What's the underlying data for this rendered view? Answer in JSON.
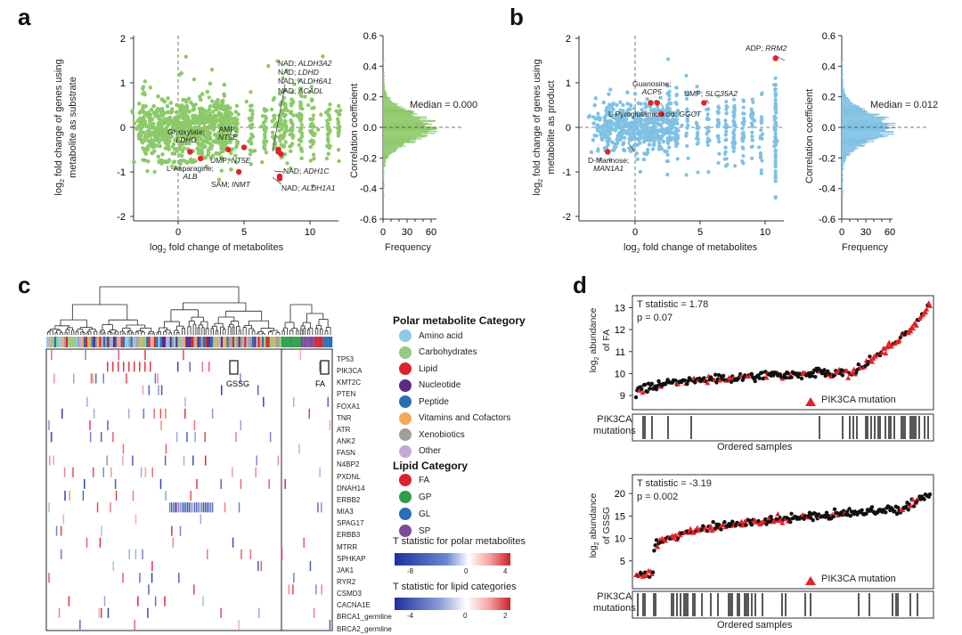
{
  "panels": {
    "a": "a",
    "b": "b",
    "c": "c",
    "d": "d"
  },
  "panel_a": {
    "ylabel_line1": "log",
    "ylabel_line1_sub": "2",
    "ylabel_rest": " fold change of genes using",
    "ylabel_line2": "metabolite as substrate",
    "xlabel_pre": "log",
    "xlabel_sub": "2",
    "xlabel_post": " fold change of metabolites",
    "yticks": [
      "2",
      "1",
      "0",
      "-1",
      "-2"
    ],
    "xticks": [
      "0",
      "5",
      "10"
    ],
    "annotations": [
      {
        "pre": "Glyoxylate;",
        "gene": "LDHD"
      },
      {
        "pre": "L-Asparagine;",
        "gene": "ALB"
      },
      {
        "pre": "AMP;",
        "gene": "NT5E"
      },
      {
        "pre": "UMP;",
        "gene": "NT5E"
      },
      {
        "pre": "SAM;",
        "gene": "INMT"
      },
      {
        "pre": "NAD;",
        "gene": "ALDH3A2"
      },
      {
        "pre": "NAD;",
        "gene": "LDHD"
      },
      {
        "pre": "NAD;",
        "gene": "ALDH6A1"
      },
      {
        "pre": "NAD;",
        "gene": "ACADL"
      },
      {
        "pre": "NAD;",
        "gene": "ADH1C"
      },
      {
        "pre": "NAD;",
        "gene": "ALDH1A1"
      }
    ],
    "hist": {
      "ylabel": "Correlation coefficient",
      "xlabel": "Frequency",
      "yticks": [
        "0.6",
        "0.4",
        "0.2",
        "0.0",
        "-0.2",
        "-0.4",
        "-0.6"
      ],
      "xticks": [
        "0",
        "30",
        "60"
      ],
      "median_label": "Median = 0.000"
    }
  },
  "panel_b": {
    "ylabel_line1": "log",
    "ylabel_line1_sub": "2",
    "ylabel_rest": " fold change of genes using",
    "ylabel_line2": "metabolite as product",
    "xlabel_pre": "log",
    "xlabel_sub": "2",
    "xlabel_post": " fold change of metabolites",
    "yticks": [
      "2",
      "1",
      "0",
      "-1",
      "-2"
    ],
    "xticks": [
      "0",
      "5",
      "10"
    ],
    "annotations": [
      {
        "pre": "ADP;",
        "gene": "RRM2"
      },
      {
        "pre": "Guanosine;",
        "gene": "ACP5"
      },
      {
        "pre": "UMP;",
        "gene": "SLC35A2"
      },
      {
        "pre": "L-Pyroglutamic acid;",
        "gene": "GGCT"
      },
      {
        "pre": "D-Mannose;",
        "gene": "MAN1A1"
      }
    ],
    "hist": {
      "ylabel": "Correlation coefficient",
      "xlabel": "Frequency",
      "yticks": [
        "0.6",
        "0.4",
        "0.2",
        "0.0",
        "-0.2",
        "-0.4",
        "-0.6"
      ],
      "xticks": [
        "0",
        "30",
        "60"
      ],
      "median_label": "Median = 0.012"
    }
  },
  "panel_c": {
    "genes": [
      "TP53",
      "PIK3CA",
      "KMT2C",
      "PTEN",
      "FOXA1",
      "TNR",
      "ATR",
      "ANK2",
      "FASN",
      "N4BP2",
      "PXDNL",
      "DNAH14",
      "ERBB2",
      "MIA3",
      "SPAG17",
      "ERBB3",
      "MTRR",
      "SPHKAP",
      "JAK1",
      "RYR2",
      "CSMD3",
      "CACNA1E",
      "BRCA1_germline",
      "BRCA2_germline"
    ],
    "box_labels": [
      "GSSG",
      "FA"
    ],
    "polar_title": "Polar metabolite Category",
    "polar_categories": [
      {
        "label": "Amino acid",
        "color": "#8ec9e6"
      },
      {
        "label": "Carbohydrates",
        "color": "#98c97e"
      },
      {
        "label": "Lipid",
        "color": "#d9232e"
      },
      {
        "label": "Nucleotide",
        "color": "#5b2c86"
      },
      {
        "label": "Peptide",
        "color": "#2a6fb5"
      },
      {
        "label": "Vitamins and Cofactors",
        "color": "#f3a955"
      },
      {
        "label": "Xenobiotics",
        "color": "#9e9e9e"
      },
      {
        "label": "Other",
        "color": "#c4a9d6"
      }
    ],
    "lipid_title": "Lipid Category",
    "lipid_categories": [
      {
        "label": "FA",
        "color": "#d9232e"
      },
      {
        "label": "GP",
        "color": "#2e9e4a"
      },
      {
        "label": "GL",
        "color": "#2a6fb5"
      },
      {
        "label": "SP",
        "color": "#7d4b9c"
      }
    ],
    "polar_scale": {
      "title": "T statistic for polar metabolites",
      "ticks": [
        "-8",
        "0",
        "4"
      ]
    },
    "lipid_scale": {
      "title": "T statistic for lipid categories",
      "ticks": [
        "-4",
        "0",
        "2"
      ]
    }
  },
  "panel_d": {
    "top": {
      "t_stat": "T statistic = 1.78",
      "p_value": "p = 0.07",
      "ylabel_pre": "log",
      "ylabel_sub": "2",
      "ylabel_post": " abundance",
      "ylabel_line2": "of FA",
      "yticks": [
        "13",
        "12",
        "11",
        "10",
        "9"
      ],
      "legend": "PIK3CA mutation",
      "track_label_1": "PIK3CA",
      "track_label_2": "mutations",
      "xlabel": "Ordered samples"
    },
    "bottom": {
      "t_stat": "T statistic = -3.19",
      "p_value": "p = 0.002",
      "ylabel_pre": "log",
      "ylabel_sub": "2",
      "ylabel_post": " abundance",
      "ylabel_line2": "of GSSG",
      "yticks": [
        "20",
        "15",
        "10",
        "5"
      ],
      "legend": "PIK3CA mutation",
      "track_label_1": "PIK3CA",
      "track_label_2": "mutations",
      "xlabel": "Ordered samples"
    }
  },
  "colors": {
    "green": "#8dc96a",
    "blue": "#7fc1e3",
    "red": "#e32227",
    "heat_red": "#d9232e",
    "heat_blue": "#2c43a8"
  }
}
